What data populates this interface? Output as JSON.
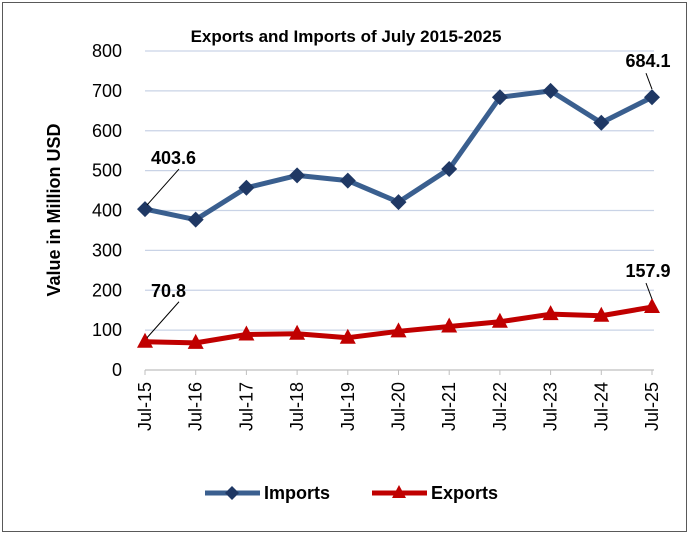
{
  "chart_data": {
    "type": "line",
    "title": "Exports and Imports of July 2015-2025",
    "xlabel": "",
    "ylabel": "Value in Million USD",
    "categories": [
      "Jul-15",
      "Jul-16",
      "Jul-17",
      "Jul-18",
      "Jul-19",
      "Jul-20",
      "Jul-21",
      "Jul-22",
      "Jul-23",
      "Jul-24",
      "Jul-25"
    ],
    "ylim": [
      0,
      800
    ],
    "yticks": [
      0,
      100,
      200,
      300,
      400,
      500,
      600,
      700,
      800
    ],
    "grid": true,
    "legend_position": "bottom",
    "series": [
      {
        "name": "Imports",
        "color": "#3A5F8F",
        "marker": "diamond",
        "values": [
          403.6,
          377,
          457,
          488,
          475,
          421,
          504,
          684,
          700,
          620,
          684.1
        ],
        "labels": [
          {
            "index": 0,
            "text": "403.6"
          },
          {
            "index": 10,
            "text": "684.1"
          }
        ]
      },
      {
        "name": "Exports",
        "color": "#C00000",
        "marker": "triangle",
        "values": [
          70.8,
          68,
          89,
          91,
          81,
          97,
          109,
          121,
          140,
          136,
          157.9
        ],
        "labels": [
          {
            "index": 0,
            "text": "70.8"
          },
          {
            "index": 10,
            "text": "157.9"
          }
        ]
      }
    ]
  }
}
